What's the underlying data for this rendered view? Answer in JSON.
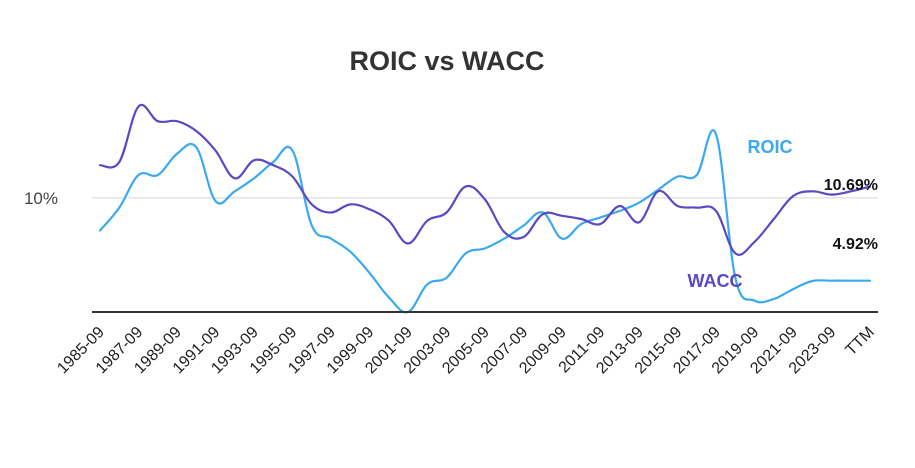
{
  "chart_data": {
    "type": "line",
    "title": "ROIC vs WACC",
    "xlabel": "",
    "ylabel": "",
    "categories": [
      "1985-09",
      "1986-09",
      "1987-09",
      "1988-09",
      "1989-09",
      "1990-09",
      "1991-09",
      "1992-09",
      "1993-09",
      "1994-09",
      "1995-09",
      "1996-09",
      "1997-09",
      "1998-09",
      "1999-09",
      "2000-09",
      "2001-09",
      "2002-09",
      "2003-09",
      "2004-09",
      "2005-09",
      "2006-09",
      "2007-09",
      "2008-09",
      "2009-09",
      "2010-09",
      "2011-09",
      "2012-09",
      "2013-09",
      "2014-09",
      "2015-09",
      "2016-09",
      "2017-09",
      "2018-09",
      "2019-09",
      "2020-09",
      "2021-09",
      "2022-09",
      "2023-09",
      "2024-09",
      "TTM"
    ],
    "tick_labels": [
      "1985-09",
      "1987-09",
      "1989-09",
      "1991-09",
      "1993-09",
      "1995-09",
      "1997-09",
      "1999-09",
      "2001-09",
      "2003-09",
      "2005-09",
      "2007-09",
      "2009-09",
      "2011-09",
      "2013-09",
      "2015-09",
      "2017-09",
      "2019-09",
      "2021-09",
      "2023-09",
      "TTM"
    ],
    "y_tick": {
      "value": 10,
      "label": "10%"
    },
    "ylim": [
      3.0,
      16.0
    ],
    "grid": true,
    "series": [
      {
        "name": "ROIC",
        "color": "#3aa9ef",
        "values": [
          8.0,
          9.4,
          11.4,
          11.4,
          12.7,
          13.1,
          9.8,
          10.4,
          11.2,
          12.2,
          12.9,
          8.3,
          7.5,
          6.7,
          5.4,
          3.9,
          3.0,
          4.7,
          5.1,
          6.6,
          6.9,
          7.5,
          8.3,
          9.1,
          7.5,
          8.4,
          8.8,
          9.2,
          9.7,
          10.5,
          11.3,
          11.4,
          13.9,
          5.1,
          3.7,
          3.8,
          4.4,
          4.9,
          4.92,
          4.92,
          4.92
        ],
        "label_value": "4.92%"
      },
      {
        "name": "WACC",
        "color": "#5b49c4",
        "values": [
          12.0,
          12.2,
          15.6,
          14.7,
          14.7,
          14.1,
          12.9,
          11.2,
          12.3,
          12.0,
          11.3,
          9.6,
          9.1,
          9.6,
          9.3,
          8.6,
          7.2,
          8.6,
          9.1,
          10.7,
          9.9,
          7.9,
          7.6,
          9.0,
          8.9,
          8.7,
          8.4,
          9.5,
          8.5,
          10.4,
          9.5,
          9.4,
          9.2,
          6.6,
          7.3,
          8.7,
          10.1,
          10.4,
          10.2,
          10.4,
          10.69
        ],
        "label_value": "10.69%"
      }
    ]
  }
}
